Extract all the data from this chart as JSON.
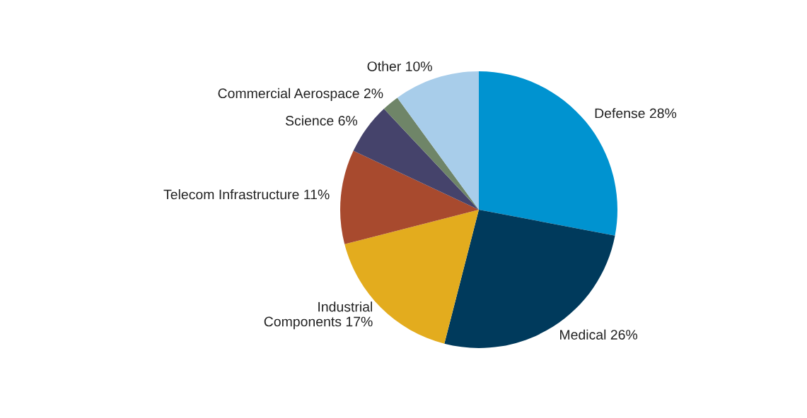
{
  "chart_data": {
    "type": "pie",
    "categories": [
      "Defense",
      "Medical",
      "Industrial\nComponents",
      "Telecom Infrastructure",
      "Science",
      "Commercial Aerospace",
      "Other"
    ],
    "values": [
      28,
      26,
      17,
      11,
      6,
      2,
      10
    ],
    "value_labels": [
      "28%",
      "26%",
      "17%",
      "11%",
      "6%",
      "2%",
      "10%"
    ],
    "colors": [
      "#0093d0",
      "#003a5c",
      "#e3ac1e",
      "#a84a2e",
      "#45436b",
      "#6f8568",
      "#a8cdea"
    ]
  }
}
